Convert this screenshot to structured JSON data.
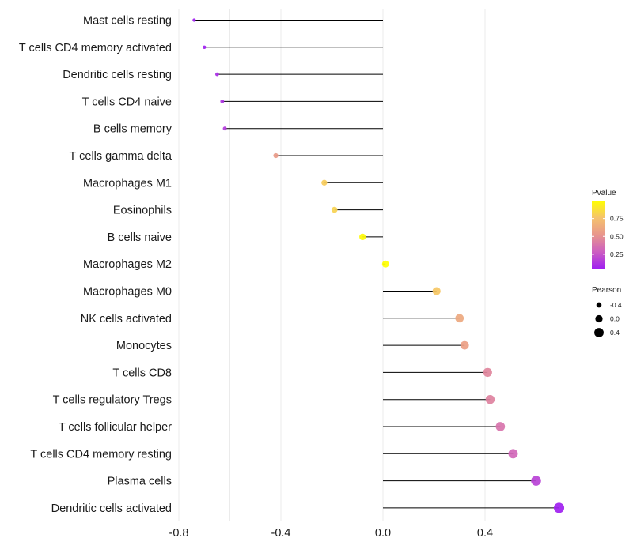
{
  "chart_data": {
    "type": "lollipop",
    "title": "",
    "xlabel": "",
    "ylabel": "",
    "xlim": [
      -0.8,
      0.68
    ],
    "x_ticks": [
      -0.8,
      -0.4,
      0.0,
      0.4
    ],
    "x_tick_labels": [
      "-0.8",
      "-0.4",
      "0.0",
      "0.4"
    ],
    "grid": true,
    "categories": [
      "Mast cells resting",
      "T cells CD4 memory activated",
      "Dendritic cells resting",
      "T cells CD4 naive",
      "B cells memory",
      "T cells gamma delta",
      "Macrophages M1",
      "Eosinophils",
      "B cells naive",
      "Macrophages M2",
      "Macrophages M0",
      "NK cells activated",
      "Monocytes",
      "T cells CD8",
      "T cells regulatory  Tregs",
      "T cells follicular helper",
      "T cells CD4 memory resting",
      "Plasma cells",
      "Dendritic cells activated"
    ],
    "values": [
      -0.74,
      -0.7,
      -0.65,
      -0.63,
      -0.62,
      -0.42,
      -0.23,
      -0.19,
      -0.08,
      0.01,
      0.21,
      0.3,
      0.32,
      0.41,
      0.42,
      0.46,
      0.51,
      0.6,
      0.69
    ],
    "pvalues": [
      0.05,
      0.05,
      0.1,
      0.12,
      0.15,
      0.55,
      0.8,
      0.82,
      0.98,
      1.0,
      0.78,
      0.62,
      0.58,
      0.45,
      0.44,
      0.38,
      0.32,
      0.18,
      0.05
    ],
    "legend_pvalue": {
      "title": "Pvalue",
      "ticks": [
        0.25,
        0.5,
        0.75
      ],
      "tick_labels": [
        "0.25",
        "0.50",
        "0.75"
      ],
      "range": [
        0.05,
        1.0
      ],
      "colors": [
        "#a020f0",
        "#cd5fc0",
        "#e8968c",
        "#f5c36c",
        "#ffff00"
      ],
      "position": "right"
    },
    "legend_pearson": {
      "title": "Pearson",
      "values": [
        -0.4,
        0.0,
        0.4
      ],
      "labels": [
        "-0.4",
        "0.0",
        "0.4"
      ],
      "position": "right"
    }
  }
}
